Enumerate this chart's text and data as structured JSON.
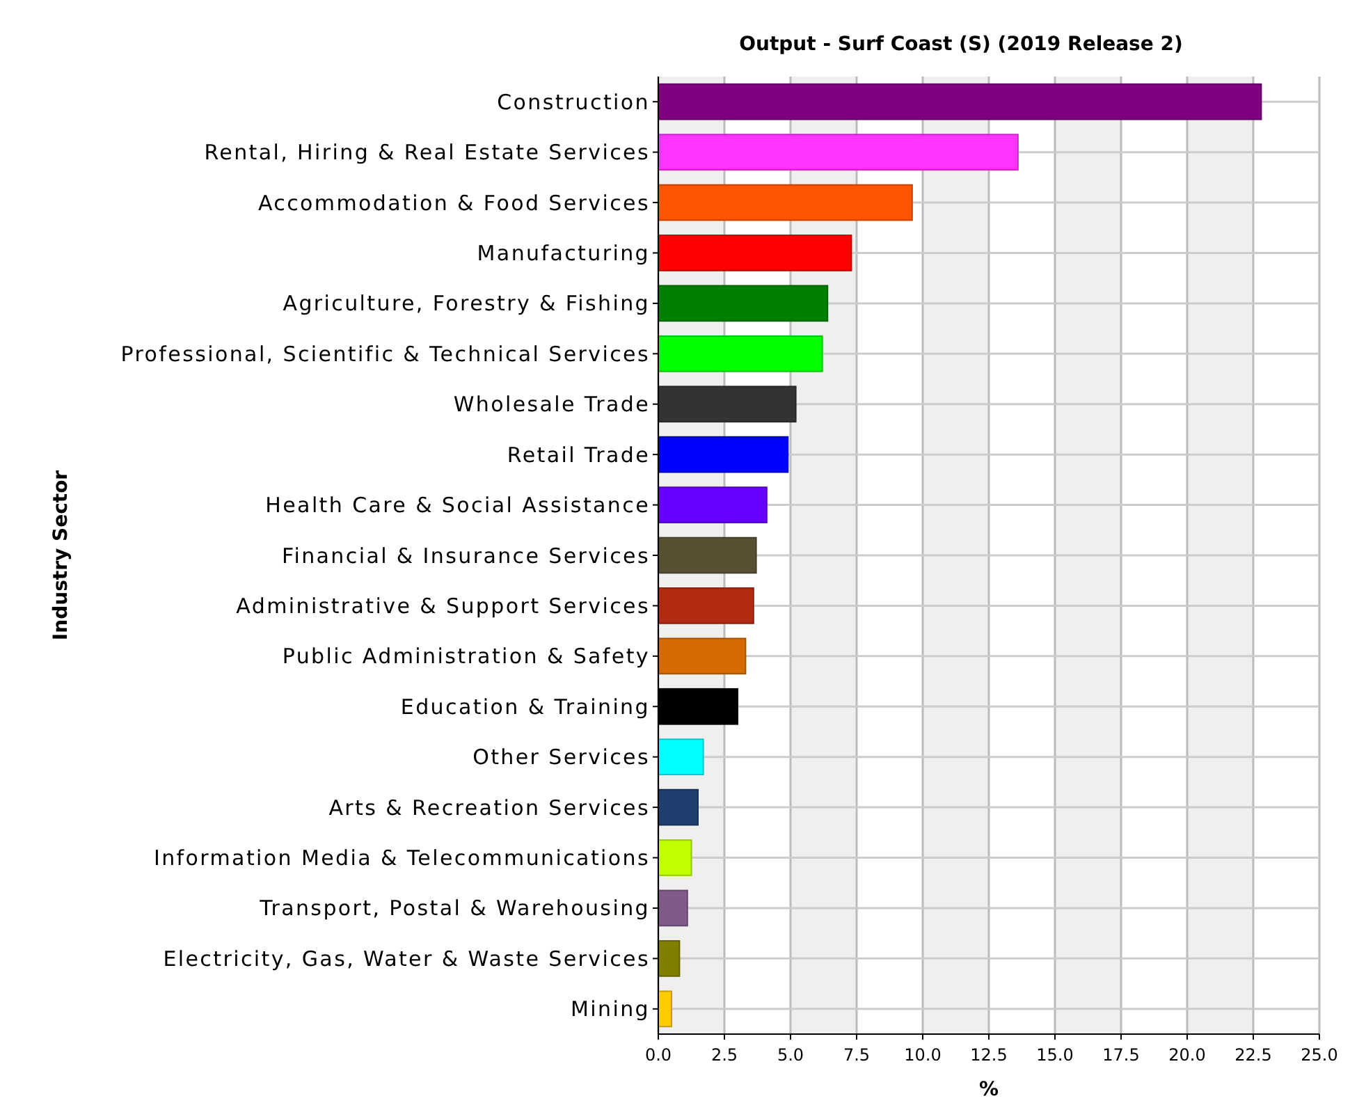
{
  "chart_data": {
    "type": "bar",
    "orientation": "horizontal",
    "title": "Output - Surf Coast (S) (2019 Release 2)",
    "xlabel": "%",
    "ylabel": "Industry Sector",
    "categories": [
      "Construction",
      "Rental, Hiring & Real Estate Services",
      "Accommodation & Food Services",
      "Manufacturing",
      "Agriculture, Forestry & Fishing",
      "Professional, Scientific & Technical Services",
      "Wholesale Trade",
      "Retail Trade",
      "Health Care & Social Assistance",
      "Financial & Insurance Services",
      "Administrative & Support Services",
      "Public Administration & Safety",
      "Education & Training",
      "Other Services",
      "Arts & Recreation Services",
      "Information Media & Telecommunications",
      "Transport, Postal & Warehousing",
      "Electricity, Gas, Water & Waste Services",
      "Mining"
    ],
    "values": [
      22.8,
      13.6,
      9.6,
      7.3,
      6.4,
      6.2,
      5.2,
      4.9,
      4.1,
      3.7,
      3.6,
      3.3,
      3.0,
      1.7,
      1.5,
      1.25,
      1.1,
      0.8,
      0.5
    ],
    "colors": [
      "#800080",
      "#ff33ff",
      "#ff5500",
      "#ff0000",
      "#008000",
      "#00ff00",
      "#333333",
      "#0000ff",
      "#6600ff",
      "#575032",
      "#b22a10",
      "#d46a00",
      "#000000",
      "#00ffff",
      "#1f3f6e",
      "#bfff00",
      "#7f5a8a",
      "#7f7f00",
      "#ffcc00"
    ],
    "xlim": [
      0,
      25
    ],
    "xticks": [
      {
        "value": 0,
        "label": "0.0"
      },
      {
        "value": 2.5,
        "label": "2.5"
      },
      {
        "value": 5,
        "label": "5.0"
      },
      {
        "value": 7.5,
        "label": "7.5"
      },
      {
        "value": 10,
        "label": "10.0"
      },
      {
        "value": 12.5,
        "label": "12.5"
      },
      {
        "value": 15,
        "label": "15.0"
      },
      {
        "value": 17.5,
        "label": "17.5"
      },
      {
        "value": 20,
        "label": "20.0"
      },
      {
        "value": 22.5,
        "label": "22.5"
      },
      {
        "value": 25,
        "label": "25.0"
      }
    ],
    "grid": true
  }
}
